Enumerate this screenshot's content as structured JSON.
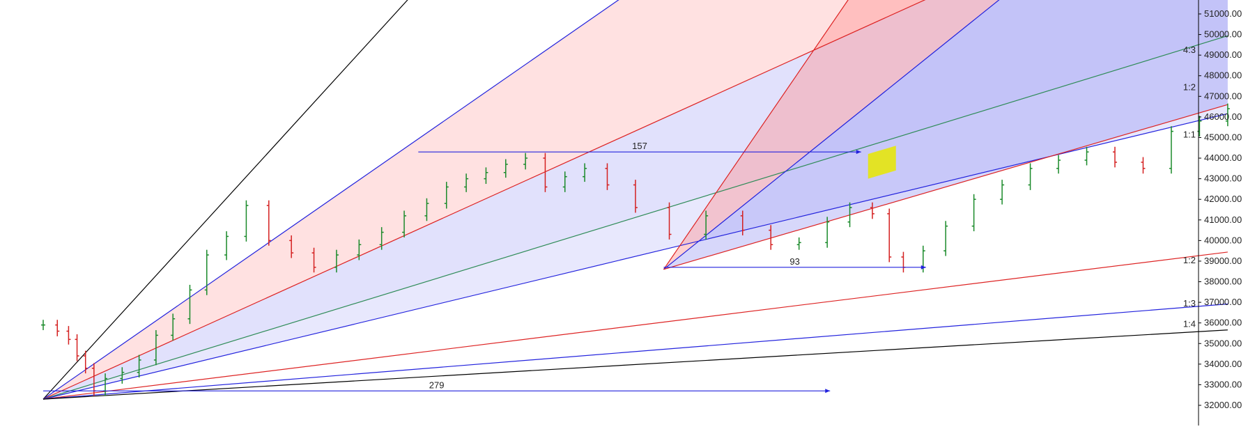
{
  "chart_data": {
    "type": "line",
    "title": "",
    "xlabel": "",
    "ylabel": "",
    "ylim": [
      31600,
      51600
    ],
    "y_ticks": [
      32000,
      33000,
      34000,
      35000,
      36000,
      37000,
      38000,
      39000,
      40000,
      41000,
      42000,
      43000,
      44000,
      45000,
      46000,
      47000,
      48000,
      49000,
      50000,
      51000
    ],
    "y_tick_labels": [
      "32000.00",
      "33000.00",
      "34000.00",
      "35000.00",
      "36000.00",
      "37000.00",
      "38000.00",
      "39000.00",
      "40000.00",
      "41000.00",
      "42000.00",
      "43000.00",
      "44000.00",
      "45000.00",
      "46000.00",
      "47000.00",
      "48000.00",
      "49000.00",
      "50000.00",
      "51000.00"
    ],
    "xlim": [
      0,
      380
    ],
    "grid": false,
    "price_series": {
      "bar_style": "OHLC",
      "up_color": "#1a8a2a",
      "down_color": "#d42020",
      "x": [
        0,
        5,
        9,
        12,
        15,
        18,
        22,
        28,
        34,
        40,
        46,
        52,
        58,
        65,
        72,
        80,
        88,
        96,
        104,
        112,
        120,
        128,
        136,
        143,
        150,
        157,
        164,
        171,
        178,
        185,
        192,
        200,
        210,
        222,
        235,
        248,
        258,
        268,
        278,
        286,
        294,
        300,
        305,
        312,
        320,
        330,
        340,
        350,
        360,
        370,
        380,
        390,
        400,
        410,
        420
      ],
      "close": [
        35900,
        35600,
        35200,
        34400,
        33800,
        32700,
        33300,
        33600,
        34200,
        35400,
        36200,
        37600,
        39300,
        40200,
        41700,
        40000,
        39400,
        38700,
        39300,
        39800,
        40400,
        41200,
        41800,
        42600,
        43000,
        43300,
        43700,
        44000,
        42600,
        43100,
        43500,
        42700,
        41600,
        40300,
        41200,
        40500,
        39800,
        39900,
        40900,
        41600,
        41300,
        39200,
        38700,
        39500,
        40700,
        42000,
        42700,
        43500,
        43900,
        44300,
        43800,
        43500,
        45300,
        45800,
        46400
      ]
    },
    "fans": [
      {
        "name": "upper-fan",
        "origin": {
          "x": 0,
          "y": 32300
        },
        "lines": [
          {
            "label": "",
            "slope": 150,
            "color": "#000000"
          },
          {
            "label": "",
            "slope": 95,
            "color": "#2222dd"
          },
          {
            "label": "",
            "slope": 62,
            "color": "#dd2222"
          },
          {
            "label": "4:3",
            "slope": 42,
            "color": "#2e8b57"
          },
          {
            "label": "1:1",
            "slope": 33,
            "color": "#2222dd"
          }
        ]
      },
      {
        "name": "lower-fan",
        "origin": {
          "x": 0,
          "y": 32300
        },
        "lines": [
          {
            "label": "1:2",
            "slope": 17,
            "color": "#dd2222"
          },
          {
            "label": "1:3",
            "slope": 11,
            "color": "#2222dd"
          },
          {
            "label": "1:4",
            "slope": 8,
            "color": "#000000"
          }
        ]
      },
      {
        "name": "mid-fan",
        "origin": {
          "x": 220,
          "y": 38600
        },
        "lines": [
          {
            "label": "",
            "slope": 200,
            "color": "#dd2222"
          },
          {
            "label": "",
            "slope": 110,
            "color": "#2222dd"
          },
          {
            "label": "1:2",
            "slope": 40,
            "color": "#dd2222"
          }
        ]
      }
    ],
    "fan_labels_right": [
      {
        "text": "4:3",
        "value": 49000
      },
      {
        "text": "1:2",
        "value": 47200
      },
      {
        "text": "1:1",
        "value": 44900
      },
      {
        "text": "1:2",
        "value": 38800
      },
      {
        "text": "1:3",
        "value": 36700
      },
      {
        "text": "1:4",
        "value": 35700
      }
    ],
    "span_annotations": [
      {
        "text": "157",
        "y": 44300,
        "x_start": 133,
        "x_end": 290
      },
      {
        "text": "93",
        "y": 38700,
        "x_start": 220,
        "x_end": 313
      },
      {
        "text": "279",
        "y": 32700,
        "x_start": 0,
        "x_end": 279
      }
    ],
    "highlight": {
      "color": "#e8e800",
      "y_low": 43000,
      "y_high": 44200
    }
  }
}
